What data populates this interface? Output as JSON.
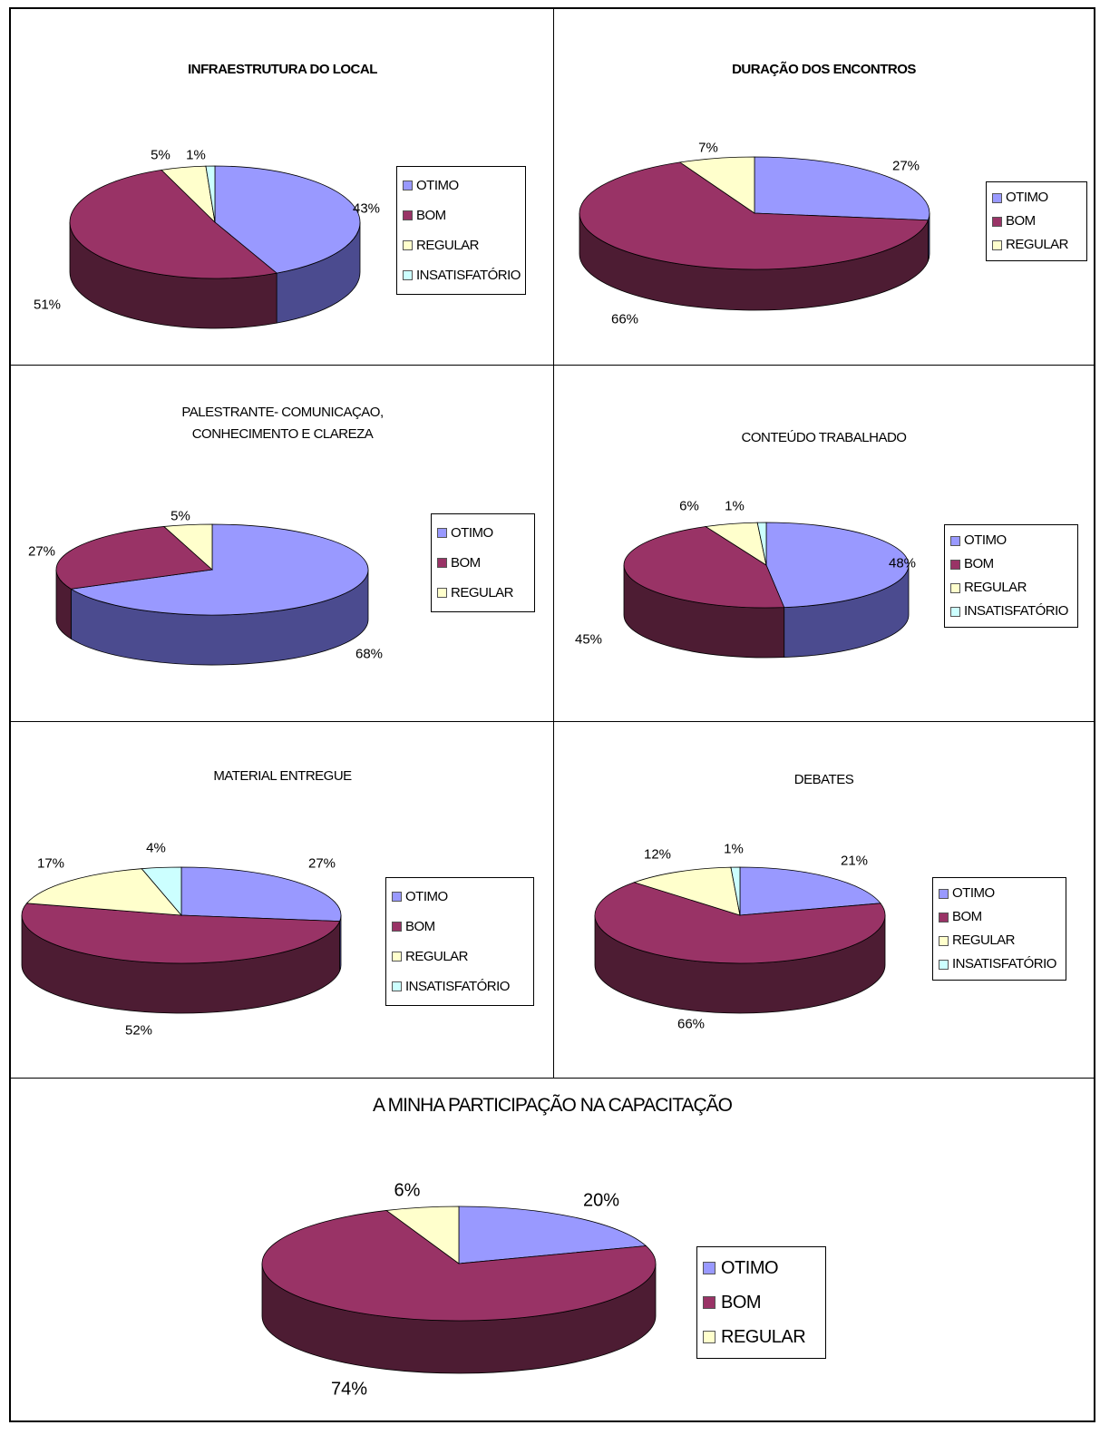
{
  "colors": {
    "OTIMO": {
      "top": "#9999ff",
      "side": "#4b4b8f"
    },
    "BOM": {
      "top": "#993366",
      "side": "#4d1c33"
    },
    "REGULAR": {
      "top": "#ffffcc",
      "side": "#bfbf99"
    },
    "INSATISFATÓRIO": {
      "top": "#ccffff",
      "side": "#80bfbf"
    }
  },
  "chart_data": [
    {
      "type": "pie",
      "title": "INFRAESTRUTURA DO LOCAL",
      "categories": [
        "OTIMO",
        "BOM",
        "REGULAR",
        "INSATISFATÓRIO"
      ],
      "values": [
        43,
        51,
        5,
        1
      ],
      "labels": [
        "43%",
        "51%",
        "5%",
        "1%"
      ],
      "legend": [
        "OTIMO",
        "BOM",
        "REGULAR",
        "INSATISFATÓRIO"
      ]
    },
    {
      "type": "pie",
      "title": "DURAÇÃO DOS ENCONTROS",
      "categories": [
        "OTIMO",
        "BOM",
        "REGULAR"
      ],
      "values": [
        27,
        66,
        7
      ],
      "labels": [
        "27%",
        "66%",
        "7%"
      ],
      "legend": [
        "OTIMO",
        "BOM",
        "REGULAR"
      ]
    },
    {
      "type": "pie",
      "title": "PALESTRANTE- COMUNICAÇAO,\nCONHECIMENTO E CLAREZA",
      "categories": [
        "OTIMO",
        "BOM",
        "REGULAR"
      ],
      "values": [
        68,
        27,
        5
      ],
      "labels": [
        "68%",
        "27%",
        "5%"
      ],
      "legend": [
        "OTIMO",
        "BOM",
        "REGULAR"
      ]
    },
    {
      "type": "pie",
      "title": "CONTEÚDO TRABALHADO",
      "categories": [
        "OTIMO",
        "BOM",
        "REGULAR",
        "INSATISFATÓRIO"
      ],
      "values": [
        48,
        45,
        6,
        1
      ],
      "labels": [
        "48%",
        "45%",
        "6%",
        "1%"
      ],
      "legend": [
        "OTIMO",
        "BOM",
        "REGULAR",
        "INSATISFATÓRIO"
      ]
    },
    {
      "type": "pie",
      "title": "MATERIAL ENTREGUE",
      "categories": [
        "OTIMO",
        "BOM",
        "REGULAR",
        "INSATISFATÓRIO"
      ],
      "values": [
        27,
        52,
        17,
        4
      ],
      "labels": [
        "27%",
        "52%",
        "17%",
        "4%"
      ],
      "legend": [
        "OTIMO",
        "BOM",
        "REGULAR",
        "INSATISFATÓRIO"
      ]
    },
    {
      "type": "pie",
      "title": "DEBATES",
      "categories": [
        "OTIMO",
        "BOM",
        "REGULAR",
        "INSATISFATÓRIO"
      ],
      "values": [
        21,
        66,
        12,
        1
      ],
      "labels": [
        "21%",
        "66%",
        "12%",
        "1%"
      ],
      "legend": [
        "OTIMO",
        "BOM",
        "REGULAR",
        "INSATISFATÓRIO"
      ]
    },
    {
      "type": "pie",
      "title": "A MINHA PARTICIPAÇÃO NA CAPACITAÇÃO",
      "categories": [
        "OTIMO",
        "BOM",
        "REGULAR"
      ],
      "values": [
        20,
        74,
        6
      ],
      "labels": [
        "20%",
        "74%",
        "6%"
      ],
      "legend": [
        "OTIMO",
        "BOM",
        "REGULAR"
      ]
    }
  ]
}
